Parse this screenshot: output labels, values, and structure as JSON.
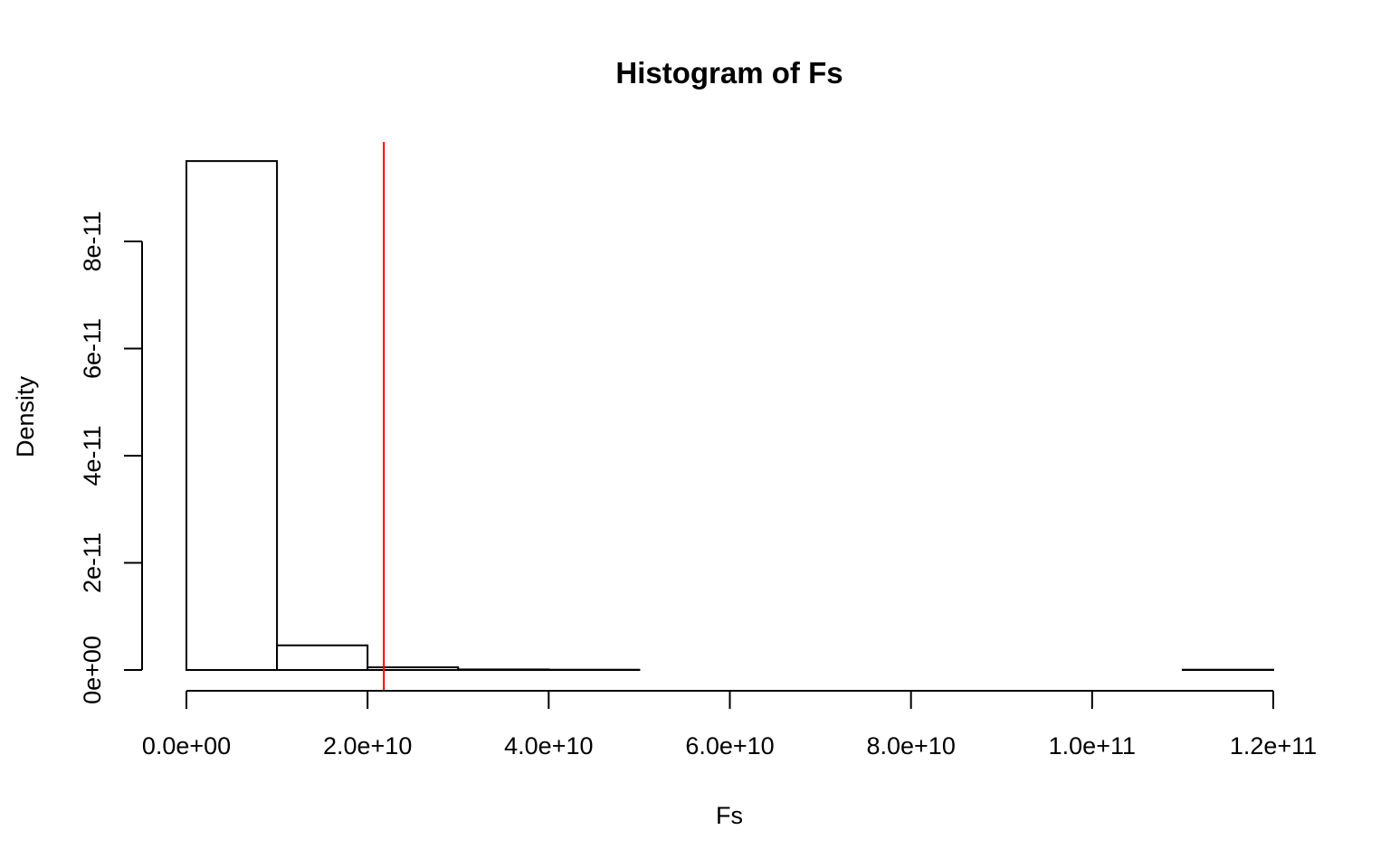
{
  "chart_data": {
    "type": "bar",
    "title": "Histogram of Fs",
    "xlabel": "Fs",
    "ylabel": "Density",
    "xlim": [
      0,
      120000000000
    ],
    "ylim": [
      0,
      8e-11
    ],
    "x_ticks": [
      0,
      20000000000,
      40000000000,
      60000000000,
      80000000000,
      100000000000,
      120000000000
    ],
    "x_tick_labels": [
      "0.0e+00",
      "2.0e+10",
      "4.0e+10",
      "6.0e+10",
      "8.0e+10",
      "1.0e+11",
      "1.2e+11"
    ],
    "y_ticks": [
      0,
      2e-11,
      4e-11,
      6e-11,
      8e-11
    ],
    "y_tick_labels": [
      "0e+00",
      "2e-11",
      "4e-11",
      "6e-11",
      "8e-11"
    ],
    "bin_edges": [
      0,
      10000000000,
      20000000000,
      30000000000,
      40000000000,
      50000000000,
      60000000000,
      70000000000,
      80000000000,
      90000000000,
      100000000000,
      110000000000,
      120000000000
    ],
    "values": [
      9.5e-11,
      4.6e-12,
      5e-13,
      1e-13,
      5e-14,
      0,
      0,
      0,
      0,
      0,
      0,
      5e-14
    ],
    "reference_line": {
      "x": 21800000000,
      "color": "#ff0000"
    },
    "grid": false,
    "legend": "none"
  }
}
